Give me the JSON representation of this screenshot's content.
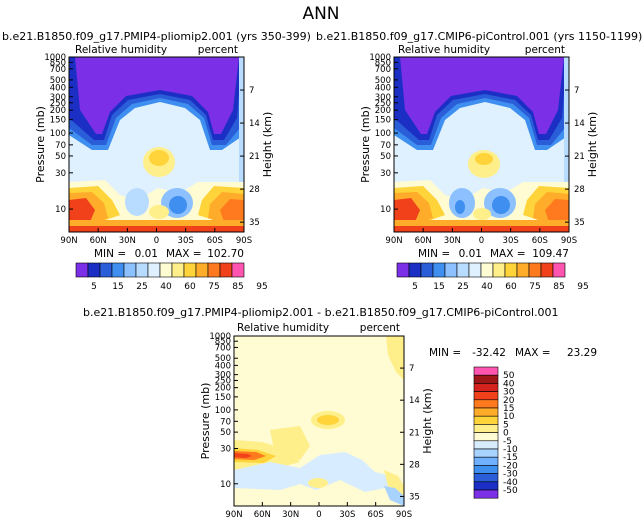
{
  "page_title": "ANN",
  "colors": {
    "rh": [
      "#7b2fe6",
      "#1b2fc4",
      "#2a5ed8",
      "#3f8ff0",
      "#8cc0ff",
      "#b8dcff",
      "#dff0ff",
      "#fffbd2",
      "#ffef8a",
      "#ffd33a",
      "#ffac2a",
      "#ff7a1e",
      "#f0411b",
      "#ff55b0"
    ],
    "diff": [
      "#7b2fe6",
      "#1b2fc4",
      "#2a5ed8",
      "#3f8ff0",
      "#6fb1ff",
      "#a9d3ff",
      "#d8ecff",
      "#fffbd2",
      "#ffef8a",
      "#ffd33a",
      "#ffac2a",
      "#ff7a1e",
      "#f0411b",
      "#d4221f",
      "#9e1618",
      "#ff55b0"
    ]
  },
  "chart_data": [
    {
      "type": "heatmap",
      "title": "b.e21.B1850.f09_g17.PMIP4-pliomip2.001 (yrs 350-399)",
      "subtitle_left": "Relative humidity",
      "subtitle_right": "percent",
      "xlabel": "",
      "ylabel": "Pressure (mb)",
      "ylabel_right": "Height (km)",
      "x_ticks": [
        "90N",
        "60N",
        "30N",
        "0",
        "30S",
        "60S",
        "90S"
      ],
      "y_ticks": [
        "10",
        "30",
        "50",
        "70",
        "100",
        "150",
        "200",
        "250",
        "300",
        "400",
        "500",
        "700",
        "850",
        "1000"
      ],
      "y_right_ticks": [
        "35",
        "28",
        "21",
        "14",
        "7"
      ],
      "min_label": "MIN =",
      "min_value": "0.01",
      "max_label": "MAX =",
      "max_value": "102.70",
      "colorbar_labels": [
        "5",
        "15",
        "25",
        "40",
        "60",
        "75",
        "85",
        "95"
      ]
    },
    {
      "type": "heatmap",
      "title": "b.e21.B1850.f09_g17.CMIP6-piControl.001 (yrs 1150-1199)",
      "subtitle_left": "Relative humidity",
      "subtitle_right": "percent",
      "xlabel": "",
      "ylabel": "Pressure (mb)",
      "ylabel_right": "Height (km)",
      "x_ticks": [
        "90N",
        "60N",
        "30N",
        "0",
        "30S",
        "60S",
        "90S"
      ],
      "y_ticks": [
        "10",
        "30",
        "50",
        "70",
        "100",
        "150",
        "200",
        "250",
        "300",
        "400",
        "500",
        "700",
        "850",
        "1000"
      ],
      "y_right_ticks": [
        "35",
        "28",
        "21",
        "14",
        "7"
      ],
      "min_label": "MIN =",
      "min_value": "0.01",
      "max_label": "MAX =",
      "max_value": "109.47",
      "colorbar_labels": [
        "5",
        "15",
        "25",
        "40",
        "60",
        "75",
        "85",
        "95"
      ]
    },
    {
      "type": "heatmap",
      "title": "b.e21.B1850.f09_g17.PMIP4-pliomip2.001 - b.e21.B1850.f09_g17.CMIP6-piControl.001",
      "subtitle_left": "Relative humidity",
      "subtitle_right": "percent",
      "xlabel": "",
      "ylabel": "Pressure (mb)",
      "ylabel_right": "Height (km)",
      "x_ticks": [
        "90N",
        "60N",
        "30N",
        "0",
        "30S",
        "60S",
        "90S"
      ],
      "y_ticks": [
        "10",
        "30",
        "50",
        "70",
        "100",
        "150",
        "200",
        "250",
        "300",
        "400",
        "500",
        "700",
        "850",
        "1000"
      ],
      "y_right_ticks": [
        "35",
        "28",
        "21",
        "14",
        "7"
      ],
      "min_label": "MIN =",
      "min_value": "-32.42",
      "max_label": "MAX =",
      "max_value": "23.29",
      "colorbar_labels": [
        "50",
        "40",
        "30",
        "20",
        "15",
        "10",
        "5",
        "0",
        "-5",
        "-10",
        "-15",
        "-20",
        "-30",
        "-40",
        "-50"
      ]
    }
  ]
}
